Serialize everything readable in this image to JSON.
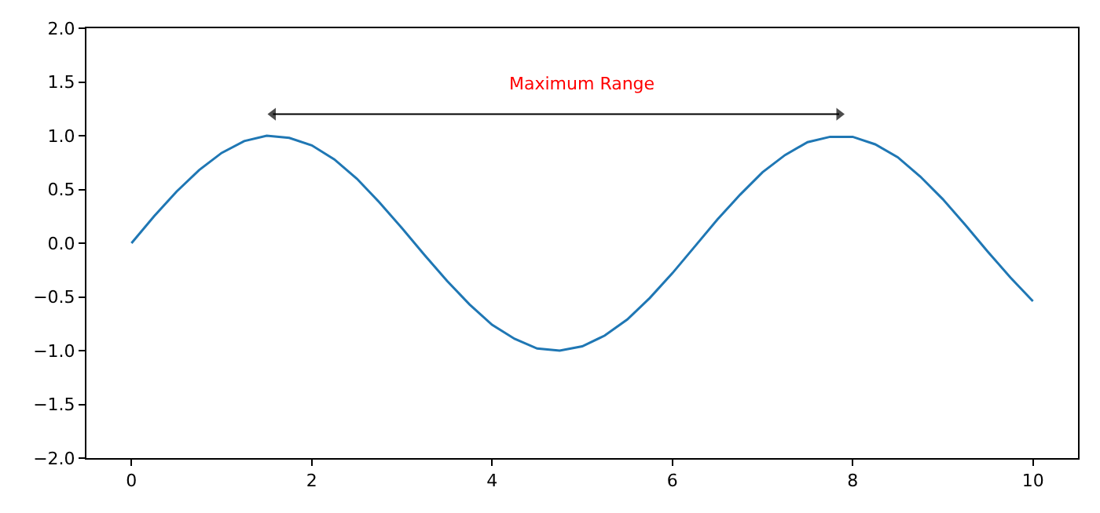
{
  "chart_data": {
    "type": "line",
    "x": [
      0,
      0.25,
      0.5,
      0.75,
      1,
      1.25,
      1.5,
      1.75,
      2,
      2.25,
      2.5,
      2.75,
      3,
      3.25,
      3.5,
      3.75,
      4,
      4.25,
      4.5,
      4.75,
      5,
      5.25,
      5.5,
      5.75,
      6,
      6.25,
      6.5,
      6.75,
      7,
      7.25,
      7.5,
      7.75,
      8,
      8.25,
      8.5,
      8.75,
      9,
      9.25,
      9.5,
      9.75,
      10
    ],
    "series": [
      {
        "color": "#1f77b4",
        "values": [
          0,
          0.25,
          0.48,
          0.68,
          0.84,
          0.95,
          1.0,
          0.98,
          0.91,
          0.78,
          0.6,
          0.38,
          0.14,
          -0.11,
          -0.35,
          -0.57,
          -0.76,
          -0.89,
          -0.98,
          -1.0,
          -0.96,
          -0.86,
          -0.71,
          -0.51,
          -0.28,
          -0.03,
          0.22,
          0.45,
          0.66,
          0.82,
          0.94,
          0.99,
          0.99,
          0.92,
          0.8,
          0.62,
          0.41,
          0.17,
          -0.08,
          -0.32,
          -0.54
        ]
      },
      {
        "type": "line",
        "marker": "triangle",
        "color": "#000000",
        "x": [
          1.57,
          7.85
        ],
        "values": [
          1.2,
          1.2
        ]
      }
    ],
    "annotations": [
      "Maximum Range"
    ],
    "xlim": [
      -0.5,
      10.5
    ],
    "xticks": [
      0,
      2,
      4,
      6,
      8,
      10
    ],
    "ylim": [
      -2,
      2
    ],
    "yticks": [
      {
        "value": -2,
        "label": "−2.0"
      },
      {
        "value": -1.5,
        "label": "−1.5"
      },
      {
        "value": -1,
        "label": "−1.0"
      },
      {
        "value": -0.5,
        "label": "−0.5"
      },
      {
        "value": 0,
        "label": "0.0"
      },
      {
        "value": 0.5,
        "label": "0.5"
      },
      {
        "value": 1,
        "label": "1.0"
      },
      {
        "value": 1.5,
        "label": "1.5"
      },
      {
        "value": 2,
        "label": "2.0"
      }
    ],
    "line_style": "solid"
  }
}
